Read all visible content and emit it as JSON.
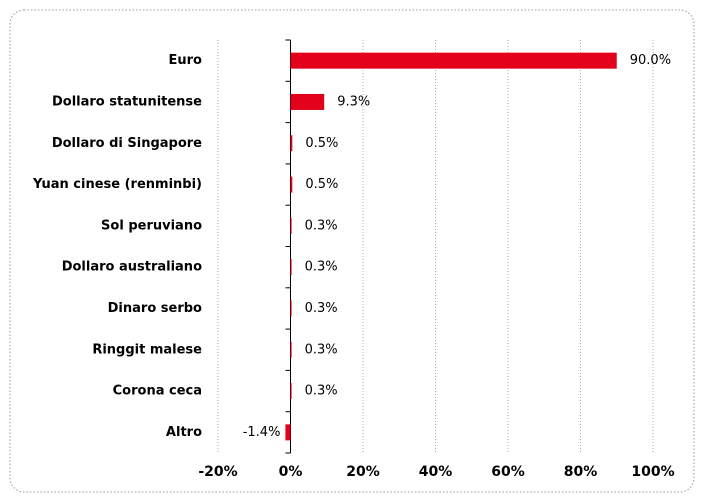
{
  "chart_data": {
    "type": "barh",
    "categories": [
      "Euro",
      "Dollaro statunitense",
      "Dollaro di Singapore",
      "Yuan cinese (renminbi)",
      "Sol peruviano",
      "Dollaro australiano",
      "Dinaro serbo",
      "Ringgit malese",
      "Corona ceca",
      "Altro"
    ],
    "values": [
      90.0,
      9.3,
      0.5,
      0.5,
      0.3,
      0.3,
      0.3,
      0.3,
      0.3,
      -1.4
    ],
    "value_labels": [
      "90.0%",
      "9.3%",
      "0.5%",
      "0.5%",
      "0.3%",
      "0.3%",
      "0.3%",
      "0.3%",
      "0.3%",
      "-1.4%"
    ],
    "color": "#e2001a",
    "xlim": [
      -20,
      100
    ],
    "xticks": [
      {
        "value": -20,
        "label": "-20%"
      },
      {
        "value": 0,
        "label": "0%"
      },
      {
        "value": 20,
        "label": "20%"
      },
      {
        "value": 40,
        "label": "40%"
      },
      {
        "value": 60,
        "label": "60%"
      },
      {
        "value": 80,
        "label": "80%"
      },
      {
        "value": 100,
        "label": "100%"
      }
    ],
    "grid": true
  }
}
